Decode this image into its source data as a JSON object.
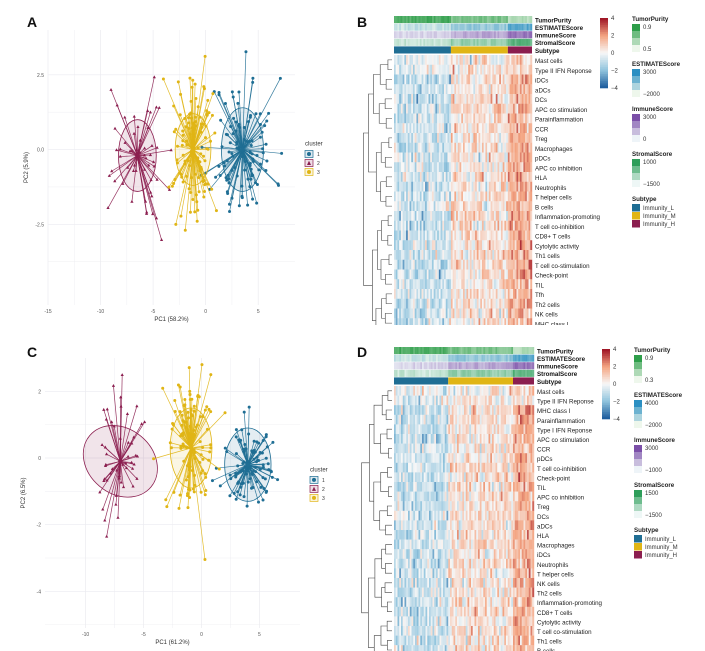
{
  "figure": {
    "panels": {
      "A": "A",
      "B": "B",
      "C": "C",
      "D": "D"
    }
  },
  "colors": {
    "cluster1": "#1f6e94",
    "cluster2": "#8b1e4f",
    "cluster3": "#e0b515",
    "heat_low": "#1f5f9e",
    "heat_mid": "#f7f7f7",
    "heat_high": "#a01727",
    "grid": "#ebebf0"
  },
  "chart_data": [
    {
      "id": "A",
      "type": "scatter",
      "title": "",
      "xlabel": "PC1 (58.2%)",
      "ylabel": "PC2 (5.9%)",
      "xlim": [
        -15,
        8.5
      ],
      "ylim": [
        -5.2,
        4.0
      ],
      "xticks": [
        -15,
        -10,
        -5,
        0,
        5
      ],
      "xtick_labels": [
        "-15",
        "-10",
        "-5",
        "0",
        "5"
      ],
      "yticks": [
        -2.5,
        0.0,
        2.5
      ],
      "ytick_labels": [
        "-2.5",
        "0.0",
        "2.5"
      ],
      "grid": true,
      "legend": {
        "title": "cluster",
        "position": "right",
        "entries": [
          "1",
          "2",
          "3"
        ]
      },
      "series": [
        {
          "name": "1",
          "shape": "circle",
          "centroid": [
            3.5,
            0.0
          ],
          "ellipse": {
            "rx": 2.0,
            "ry": 1.4
          },
          "n": 110,
          "spread": [
            2.6,
            1.5
          ],
          "seed": 11
        },
        {
          "name": "2",
          "shape": "triangle",
          "centroid": [
            -6.5,
            -0.2
          ],
          "ellipse": {
            "rx": 1.8,
            "ry": 1.2
          },
          "n": 55,
          "spread": [
            2.4,
            1.3
          ],
          "seed": 22
        },
        {
          "name": "3",
          "shape": "circle",
          "centroid": [
            -1.2,
            0.0
          ],
          "ellipse": {
            "rx": 1.7,
            "ry": 1.2
          },
          "n": 120,
          "spread": [
            1.6,
            1.5
          ],
          "seed": 33
        }
      ]
    },
    {
      "id": "C",
      "type": "scatter",
      "title": "",
      "xlabel": "PC1 (61.2%)",
      "ylabel": "PC2 (6.5%)",
      "xlim": [
        -13.5,
        8.5
      ],
      "ylim": [
        -5.1,
        3.0
      ],
      "xticks": [
        -10,
        -5,
        0,
        5
      ],
      "xtick_labels": [
        "-10",
        "-5",
        "0",
        "5"
      ],
      "yticks": [
        -4,
        -2,
        0,
        2
      ],
      "ytick_labels": [
        "-4",
        "-2",
        "0",
        "2"
      ],
      "grid": true,
      "legend": {
        "title": "cluster",
        "position": "right",
        "entries": [
          "1",
          "2",
          "3"
        ]
      },
      "series": [
        {
          "name": "1",
          "shape": "circle",
          "centroid": [
            4.0,
            -0.2
          ],
          "ellipse": {
            "rx": 2.0,
            "ry": 1.1
          },
          "n": 100,
          "spread": [
            2.0,
            0.9
          ],
          "seed": 44
        },
        {
          "name": "2",
          "shape": "triangle",
          "centroid": [
            -7.0,
            -0.1
          ],
          "ellipse": {
            "rx": 2.8,
            "ry": 1.2,
            "rot": -50
          },
          "n": 50,
          "spread": [
            2.6,
            1.2
          ],
          "seed": 55
        },
        {
          "name": "3",
          "shape": "circle",
          "centroid": [
            -0.9,
            0.3
          ],
          "ellipse": {
            "rx": 1.8,
            "ry": 1.2
          },
          "n": 115,
          "spread": [
            1.7,
            1.3
          ],
          "seed": 66
        }
      ]
    },
    {
      "id": "B",
      "type": "heatmap",
      "row_labels": [
        "Mast cells",
        "Type II IFN Reponse",
        "iDCs",
        "aDCs",
        "DCs",
        "APC co stimulation",
        "Parainflammation",
        "CCR",
        "Treg",
        "Macrophages",
        "pDCs",
        "APC co inhibition",
        "HLA",
        "Neutrophils",
        "T helper cells",
        "B cells",
        "Inflammation-promoting",
        "T cell co-inhibition",
        "CD8+ T cells",
        "Cytolytic activity",
        "Th1 cells",
        "T cell co-stimulation",
        "Check-point",
        "TIL",
        "Tfh",
        "Th2 cells",
        "NK cells",
        "MHC class I",
        "Type I IFN Reponse"
      ],
      "annotations": [
        "TumorPurity",
        "ESTIMATEScore",
        "ImmuneScore",
        "StromalScore",
        "Subtype"
      ],
      "subtype_fractions": {
        "Immunity_L": 0.41,
        "Immunity_M": 0.42,
        "Immunity_H": 0.17
      },
      "color_scale": {
        "min": -4,
        "max": 4,
        "ticks": [
          4,
          2,
          0,
          -2,
          -4
        ]
      },
      "legends": [
        {
          "title": "TumorPurity",
          "high": "0.9",
          "low": "0.5"
        },
        {
          "title": "ESTIMATEScore",
          "high": "3000",
          "low": "-2000"
        },
        {
          "title": "ImmuneScore",
          "high": "3000",
          "low": "0"
        },
        {
          "title": "StromalScore",
          "high": "1000",
          "low": "-1500"
        }
      ],
      "subtype_legend": {
        "title": "Subtype",
        "entries": [
          "Immunity_L",
          "Immunity_M",
          "Immunity_H"
        ]
      },
      "seed": 77
    },
    {
      "id": "D",
      "type": "heatmap",
      "row_labels": [
        "Mast cells",
        "Type II IFN Reponse",
        "MHC class I",
        "Parainflammation",
        "Type I IFN Reponse",
        "APC co stimulation",
        "CCR",
        "pDCs",
        "T cell co-inhibition",
        "Check-point",
        "TIL",
        "APC co inhibition",
        "Treg",
        "DCs",
        "aDCs",
        "HLA",
        "Macrophages",
        "iDCs",
        "Neutrophils",
        "T helper cells",
        "NK cells",
        "Th2 cells",
        "Inflammation-promoting",
        "CD8+ T cells",
        "Cytolytic activity",
        "T cell co-stimulation",
        "Th1 cells",
        "B cells",
        "Tfh"
      ],
      "annotations": [
        "TumorPurity",
        "ESTIMATEScore",
        "ImmuneScore",
        "StromalScore",
        "Subtype"
      ],
      "subtype_fractions": {
        "Immunity_L": 0.39,
        "Immunity_M": 0.46,
        "Immunity_H": 0.15
      },
      "color_scale": {
        "min": -4,
        "max": 4,
        "ticks": [
          4,
          2,
          0,
          -2,
          -4
        ]
      },
      "legends": [
        {
          "title": "TumorPurity",
          "high": "0.9",
          "low": "0.3"
        },
        {
          "title": "ESTIMATEScore",
          "high": "4000",
          "low": "-2000"
        },
        {
          "title": "ImmuneScore",
          "high": "3000",
          "low": "-1000"
        },
        {
          "title": "StromalScore",
          "high": "1500",
          "low": "-1500"
        }
      ],
      "subtype_legend": {
        "title": "Subtype",
        "entries": [
          "Immunity_L",
          "Immunity_M",
          "Immunity_H"
        ]
      },
      "seed": 88
    }
  ]
}
